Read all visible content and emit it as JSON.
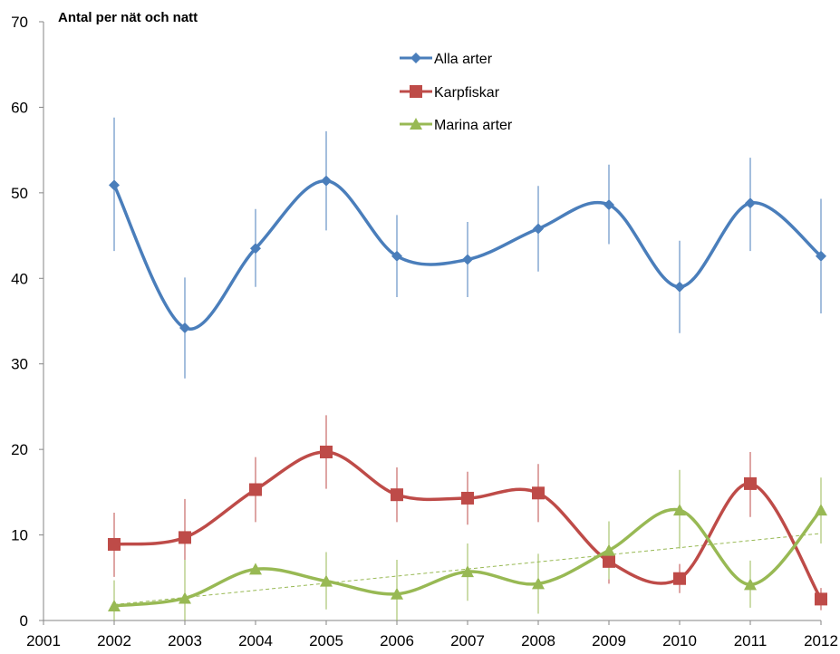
{
  "chart_data": {
    "type": "line",
    "title": "Antal per nät och natt",
    "xlabel": "",
    "ylabel": "",
    "x": [
      2002,
      2003,
      2004,
      2005,
      2006,
      2007,
      2008,
      2009,
      2010,
      2011,
      2012
    ],
    "xlim": [
      2001,
      2012
    ],
    "x_tick_labels": [
      "2001",
      "2002",
      "2003",
      "2004",
      "2005",
      "2006",
      "2007",
      "2008",
      "2009",
      "2010",
      "2011",
      "2012"
    ],
    "ylim": [
      0,
      70
    ],
    "y_tick_labels": [
      "0",
      "10",
      "20",
      "30",
      "40",
      "50",
      "60",
      "70"
    ],
    "grid": false,
    "legend_position": "top-center",
    "smoothed": true,
    "series": [
      {
        "name": "Alla arter",
        "color": "#4a7ebb",
        "marker": "diamond",
        "values": [
          50.9,
          34.2,
          43.5,
          51.4,
          42.6,
          42.2,
          45.8,
          48.6,
          39.0,
          48.8,
          42.6
        ],
        "error_low": [
          43.2,
          28.3,
          39.0,
          45.6,
          37.8,
          37.8,
          40.8,
          44.0,
          33.6,
          43.2,
          35.9
        ],
        "error_high": [
          58.8,
          40.1,
          48.1,
          57.2,
          47.4,
          46.6,
          50.8,
          53.3,
          44.4,
          54.1,
          49.3
        ]
      },
      {
        "name": "Karpfiskar",
        "color": "#be4b48",
        "marker": "square",
        "values": [
          8.9,
          9.7,
          15.3,
          19.7,
          14.7,
          14.3,
          14.9,
          6.9,
          4.9,
          16.0,
          2.5
        ],
        "error_low": [
          5.1,
          5.3,
          11.5,
          15.4,
          11.5,
          11.2,
          11.5,
          4.3,
          3.2,
          12.1,
          1.2
        ],
        "error_high": [
          12.6,
          14.2,
          19.1,
          24.0,
          17.9,
          17.4,
          18.3,
          9.5,
          6.6,
          19.7,
          3.8
        ]
      },
      {
        "name": "Marina arter",
        "color": "#98b954",
        "marker": "triangle",
        "values": [
          1.7,
          2.6,
          6.0,
          4.6,
          3.1,
          5.7,
          4.3,
          8.2,
          12.9,
          4.2,
          12.9
        ],
        "error_low": [
          0.0,
          0.0,
          5.4,
          1.3,
          0.0,
          2.3,
          0.8,
          4.8,
          8.4,
          1.5,
          9.0
        ],
        "error_high": [
          4.7,
          7.1,
          6.6,
          8.0,
          7.1,
          9.0,
          7.8,
          11.6,
          17.6,
          7.0,
          16.7
        ]
      }
    ],
    "trendline": {
      "series": "Marina arter",
      "type": "linear",
      "style": "dashed",
      "color": "#98b954"
    }
  }
}
